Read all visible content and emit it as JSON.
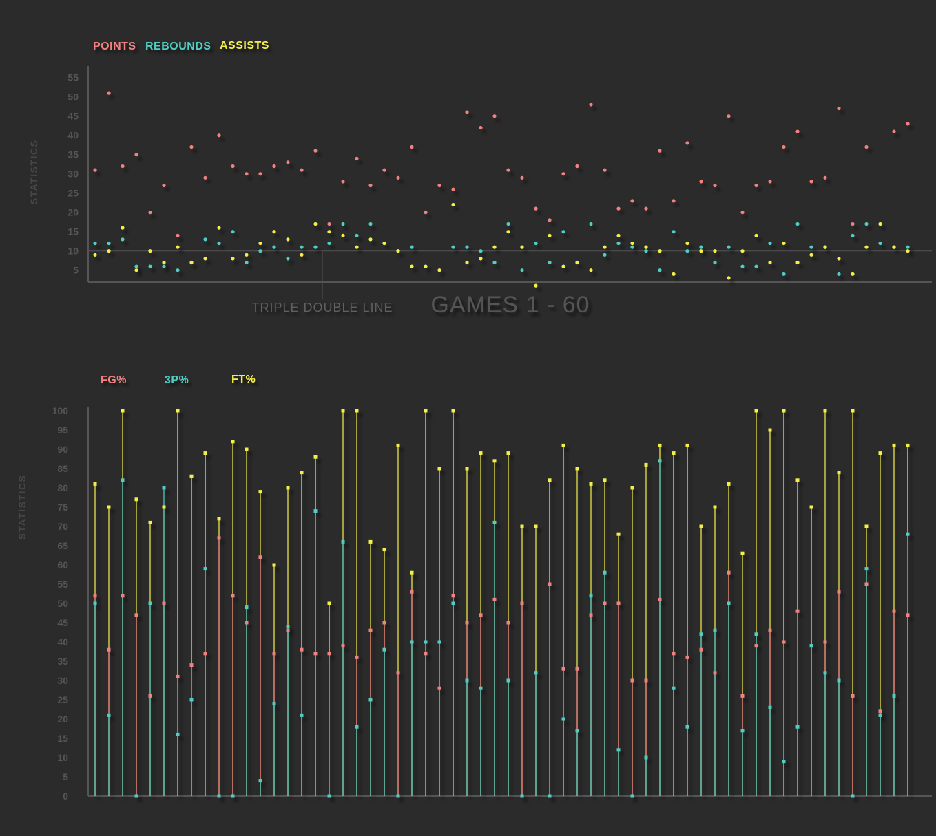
{
  "colors": {
    "background": "#2b2b2b",
    "points": "#f28181",
    "rebounds": "#4fcfc3",
    "assists": "#f5ef4a",
    "axis": "#555555",
    "tick_text": "#555555"
  },
  "chart_data": [
    {
      "type": "scatter",
      "legend": [
        "POINTS",
        "REBOUNDS",
        "ASSISTS"
      ],
      "legend_position": "top-left",
      "ylabel": "STATISTICS",
      "xlabel": "GAMES 1 - 60",
      "reference_line": {
        "y": 10,
        "label": "TRIPLE DOUBLE LINE"
      },
      "ylim": [
        2,
        57
      ],
      "yticks": [
        5,
        10,
        15,
        20,
        25,
        30,
        35,
        40,
        45,
        50,
        55
      ],
      "x": [
        1,
        2,
        3,
        4,
        5,
        6,
        7,
        8,
        9,
        10,
        11,
        12,
        13,
        14,
        15,
        16,
        17,
        18,
        19,
        20,
        21,
        22,
        23,
        24,
        25,
        26,
        27,
        28,
        29,
        30,
        31,
        32,
        33,
        34,
        35,
        36,
        37,
        38,
        39,
        40,
        41,
        42,
        43,
        44,
        45,
        46,
        47,
        48,
        49,
        50,
        51,
        52,
        53,
        54,
        55,
        56,
        57,
        58,
        59,
        60
      ],
      "series": [
        {
          "name": "POINTS",
          "values": [
            31,
            51,
            32,
            35,
            20,
            27,
            14,
            37,
            29,
            40,
            32,
            30,
            30,
            32,
            33,
            31,
            36,
            17,
            28,
            34,
            27,
            31,
            29,
            37,
            20,
            27,
            26,
            46,
            42,
            45,
            31,
            29,
            21,
            18,
            30,
            32,
            48,
            31,
            21,
            23,
            21,
            36,
            23,
            38,
            28,
            27,
            45,
            20,
            27,
            28,
            37,
            41,
            28,
            29,
            47,
            17,
            37,
            17,
            41,
            43
          ]
        },
        {
          "name": "REBOUNDS",
          "values": [
            12,
            12,
            13,
            6,
            6,
            6,
            5,
            7,
            13,
            12,
            15,
            7,
            10,
            11,
            8,
            11,
            11,
            12,
            17,
            14,
            17,
            12,
            10,
            11,
            6,
            5,
            11,
            11,
            10,
            7,
            17,
            5,
            12,
            7,
            15,
            7,
            17,
            9,
            12,
            11,
            10,
            5,
            15,
            10,
            11,
            7,
            11,
            6,
            6,
            12,
            4,
            17,
            11,
            11,
            4,
            14,
            17,
            12,
            11,
            11
          ]
        },
        {
          "name": "ASSISTS",
          "values": [
            9,
            10,
            16,
            5,
            10,
            7,
            11,
            7,
            8,
            16,
            8,
            9,
            12,
            15,
            13,
            9,
            17,
            15,
            14,
            11,
            13,
            12,
            10,
            6,
            6,
            5,
            22,
            7,
            8,
            11,
            15,
            11,
            1,
            14,
            6,
            7,
            5,
            11,
            14,
            12,
            11,
            10,
            4,
            12,
            10,
            10,
            3,
            10,
            14,
            7,
            12,
            7,
            9,
            11,
            8,
            4,
            11,
            17,
            11,
            10
          ]
        }
      ]
    },
    {
      "type": "line",
      "legend": [
        "FG%",
        "3P%",
        "FT%"
      ],
      "legend_position": "top-left",
      "ylabel": "STATISTICS",
      "ylim": [
        0,
        100
      ],
      "yticks": [
        0,
        5,
        10,
        15,
        20,
        25,
        30,
        35,
        40,
        45,
        50,
        55,
        60,
        65,
        70,
        75,
        80,
        85,
        90,
        95,
        100
      ],
      "x": [
        1,
        2,
        3,
        4,
        5,
        6,
        7,
        8,
        9,
        10,
        11,
        12,
        13,
        14,
        15,
        16,
        17,
        18,
        19,
        20,
        21,
        22,
        23,
        24,
        25,
        26,
        27,
        28,
        29,
        30,
        31,
        32,
        33,
        34,
        35,
        36,
        37,
        38,
        39,
        40,
        41,
        42,
        43,
        44,
        45,
        46,
        47,
        48,
        49,
        50,
        51,
        52,
        53,
        54,
        55,
        56,
        57,
        58,
        59,
        60
      ],
      "series": [
        {
          "name": "FG%",
          "values": [
            52,
            38,
            52,
            47,
            26,
            50,
            31,
            34,
            37,
            67,
            52,
            45,
            62,
            37,
            43,
            38,
            37,
            37,
            39,
            36,
            43,
            45,
            32,
            53,
            37,
            28,
            52,
            45,
            47,
            51,
            45,
            50,
            32,
            55,
            33,
            33,
            47,
            50,
            50,
            30,
            30,
            51,
            37,
            36,
            38,
            32,
            58,
            26,
            39,
            43,
            40,
            48,
            39,
            40,
            53,
            26,
            55,
            22,
            48,
            47
          ]
        },
        {
          "name": "3P%",
          "values": [
            50,
            21,
            82,
            0,
            50,
            80,
            16,
            25,
            59,
            0,
            0,
            49,
            4,
            24,
            44,
            21,
            74,
            0,
            66,
            18,
            25,
            38,
            0,
            40,
            40,
            40,
            50,
            30,
            28,
            71,
            30,
            0,
            32,
            0,
            20,
            17,
            52,
            58,
            12,
            0,
            10,
            87,
            28,
            18,
            42,
            43,
            50,
            17,
            42,
            23,
            9,
            18,
            39,
            32,
            30,
            0,
            59,
            21,
            26,
            68
          ]
        },
        {
          "name": "FT%",
          "values": [
            81,
            75,
            100,
            77,
            71,
            75,
            100,
            83,
            89,
            72,
            92,
            90,
            79,
            60,
            80,
            84,
            88,
            50,
            100,
            100,
            66,
            64,
            91,
            58,
            100,
            85,
            100,
            85,
            89,
            87,
            89,
            70,
            70,
            82,
            91,
            85,
            81,
            82,
            68,
            80,
            86,
            91,
            89,
            91,
            70,
            75,
            81,
            63,
            100,
            95,
            100,
            82,
            75,
            100,
            84,
            100,
            70,
            89,
            91,
            91
          ]
        }
      ]
    }
  ]
}
